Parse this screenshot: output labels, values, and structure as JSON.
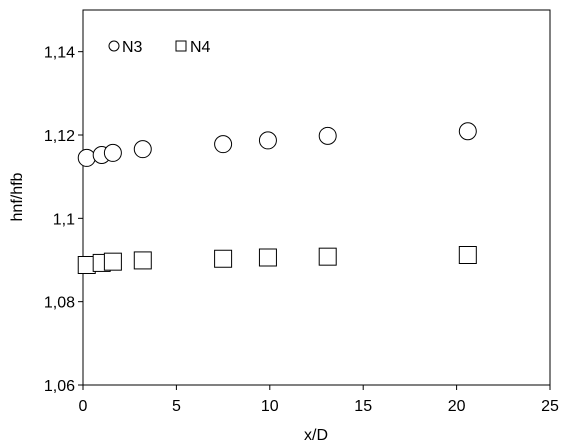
{
  "chart_data": {
    "type": "scatter",
    "title": "",
    "xlabel": "x/D",
    "ylabel": "hnf/hfb",
    "xlim": [
      0,
      25
    ],
    "ylim": [
      1.06,
      1.15
    ],
    "x_ticks": [
      0,
      5,
      10,
      15,
      20,
      25
    ],
    "x_tick_labels": [
      "0",
      "5",
      "10",
      "15",
      "20",
      "25"
    ],
    "y_ticks": [
      1.06,
      1.08,
      1.1,
      1.12,
      1.14
    ],
    "y_tick_labels": [
      "1,06",
      "1,08",
      "1,1",
      "1,12",
      "1,14"
    ],
    "grid": false,
    "legend_position": "top-left",
    "series": [
      {
        "name": "N3",
        "marker": "circle",
        "points": [
          {
            "x": 0.2,
            "y": 1.1145
          },
          {
            "x": 1.0,
            "y": 1.1152
          },
          {
            "x": 1.6,
            "y": 1.1157
          },
          {
            "x": 3.2,
            "y": 1.1166
          },
          {
            "x": 7.5,
            "y": 1.1178
          },
          {
            "x": 9.9,
            "y": 1.1187
          },
          {
            "x": 13.1,
            "y": 1.1198
          },
          {
            "x": 20.6,
            "y": 1.1209
          }
        ]
      },
      {
        "name": "N4",
        "marker": "square",
        "points": [
          {
            "x": 0.2,
            "y": 1.0888
          },
          {
            "x": 1.0,
            "y": 1.0893
          },
          {
            "x": 1.6,
            "y": 1.0896
          },
          {
            "x": 3.2,
            "y": 1.0899
          },
          {
            "x": 7.5,
            "y": 1.0903
          },
          {
            "x": 9.9,
            "y": 1.0906
          },
          {
            "x": 13.1,
            "y": 1.0908
          },
          {
            "x": 20.6,
            "y": 1.0912
          }
        ]
      }
    ]
  }
}
